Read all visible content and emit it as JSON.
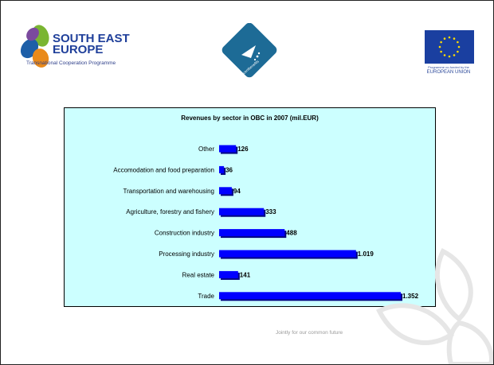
{
  "header": {
    "see_logo": {
      "line1": "SOUTH EAST",
      "line2": "EUROPE",
      "subtitle": "Transnational Cooperation Programme",
      "colors": [
        "#7ab531",
        "#1d5fa8",
        "#e98a1b",
        "#7b4a9e"
      ]
    },
    "center_logo": {
      "text": "decentbenefits",
      "color": "#1d6b96"
    },
    "eu_logo": {
      "small_text": "Programme co-funded by the",
      "label": "EUROPEAN UNION",
      "flag_color": "#1a3fa0",
      "star_color": "#ffdd00"
    }
  },
  "chart_data": {
    "type": "bar",
    "orientation": "horizontal",
    "title": "Revenues by sector in OBC in 2007 (mil.EUR)",
    "categories": [
      "Other",
      "Accomodation and food preparation",
      "Transportation and warehousing",
      "Agriculture, forestry and fishery",
      "Construction industry",
      "Processing industry",
      "Real estate",
      "Trade"
    ],
    "values": [
      126,
      36,
      94,
      333,
      488,
      1019,
      141,
      1352
    ],
    "value_labels": [
      "126",
      "36",
      "94",
      "333",
      "488",
      "1.019",
      "141",
      "1.352"
    ],
    "xlim": [
      0,
      1352
    ],
    "grid": false,
    "legend": "none",
    "bar_color": "#0000ff",
    "shadow_color": "#000080",
    "background": "#ccffff"
  },
  "footer": {
    "tagline": "Jointly for our common future"
  }
}
